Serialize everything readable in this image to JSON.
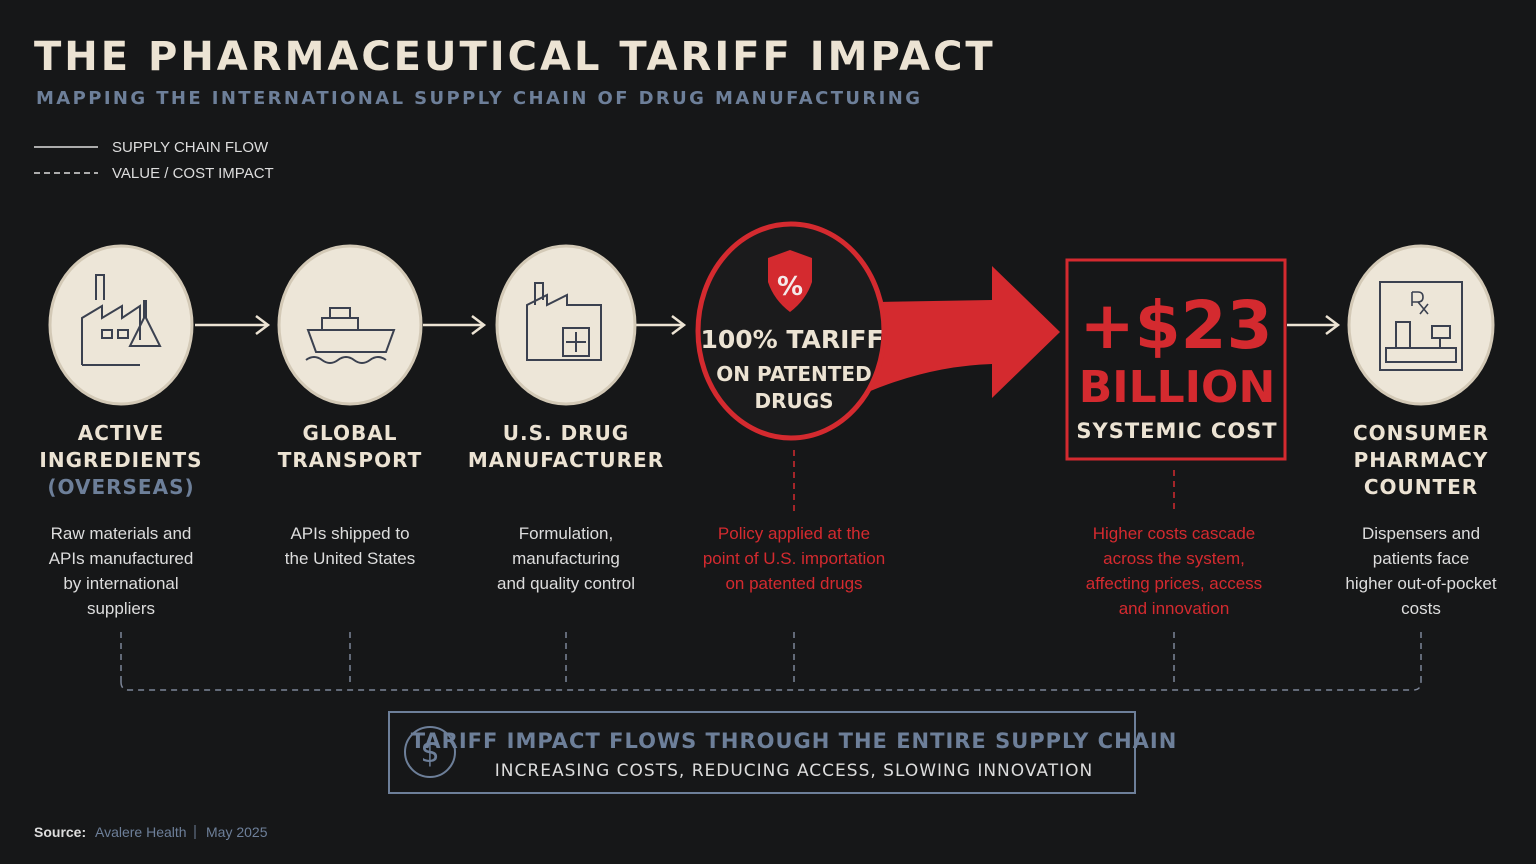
{
  "header": {
    "title": "THE PHARMACEUTICAL TARIFF IMPACT",
    "subtitle": "MAPPING THE INTERNATIONAL SUPPLY CHAIN OF DRUG MANUFACTURING"
  },
  "legend": [
    "SUPPLY CHAIN FLOW",
    "VALUE / COST IMPACT"
  ],
  "nodes": [
    {
      "label": [
        "ACTIVE",
        "INGREDIENTS",
        "(OVERSEAS)"
      ],
      "description": [
        "Raw materials and",
        "APIs manufactured",
        "by international",
        "suppliers"
      ]
    },
    {
      "label": [
        "GLOBAL",
        "TRANSPORT"
      ],
      "description": [
        "APIs shipped to",
        "the United States"
      ]
    },
    {
      "label": [
        "U.S. DRUG",
        "MANUFACTURER"
      ],
      "description": [
        "Formulation,",
        "manufacturing",
        "and quality control"
      ]
    },
    {
      "badge": "%",
      "title": "100% TARIFF",
      "subtitle": [
        "ON PATENTED",
        "DRUGS"
      ],
      "description": [
        "Policy applied at the",
        "point of U.S. importation",
        "on patented drugs"
      ]
    },
    {
      "amount": "+$23",
      "unit": "BILLION",
      "label": "SYSTEMIC COST",
      "description": [
        "Higher costs cascade",
        "across the system,",
        "affecting prices, access",
        "and innovation"
      ]
    },
    {
      "label": [
        "CONSUMER",
        "PHARMACY",
        "COUNTER"
      ],
      "description": [
        "Dispensers and",
        "patients face",
        "higher out-of-pocket",
        "costs"
      ]
    }
  ],
  "banner": {
    "icon": "$",
    "title": "TARIFF IMPACT FLOWS THROUGH THE ENTIRE SUPPLY CHAIN",
    "subtitle": "INCREASING COSTS, REDUCING ACCESS, SLOWING INNOVATION"
  },
  "source": {
    "label": "Source:",
    "text": "Avalere Health",
    "date": "May 2025"
  }
}
